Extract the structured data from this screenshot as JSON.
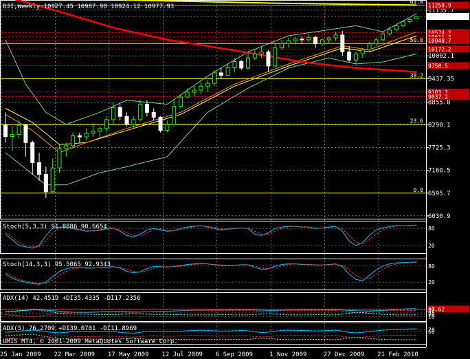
{
  "chart_data": {
    "type": "candlestick",
    "title": "DJI,Weekly  10927.45 10987.98 10924.12 10977.93",
    "symbol": "DJI",
    "timeframe": "Weekly",
    "ohlc_header": {
      "open": 10927.45,
      "high": 10987.98,
      "low": 10924.12,
      "close": 10977.93
    },
    "copyright": "UMIS MT4, © 2001-2009 MetaQuotes Software Corp.",
    "colors": {
      "background": "#000000",
      "candle_up": "#00ff00",
      "candle_down": "#ffffff",
      "grid": "#ffffff",
      "fib": "#ffff00",
      "red_line": "#ff0000",
      "sma_long": "#ff0000",
      "sma_long_yellow": "#ffff00",
      "bollinger": "#6fd3a6",
      "ma_orange": "#ff8c00",
      "ma_yellow": "#ffff66"
    },
    "x_tick_labels": [
      "25 Jan 2009",
      "22 Mar 2009",
      "17 May 2009",
      "12 Jul 2009",
      "6 Sep 2009",
      "1 Nov 2009",
      "27 Dec 2009",
      "21 Feb 2010"
    ],
    "y_tick_labels": [
      11135.7,
      10977.9,
      10002.1,
      9437.35,
      8855.0,
      8290.1,
      7725.3,
      7160.5,
      6595.7,
      6030.9
    ],
    "y_tick_label_text": [
      "11135.7",
      "10977.9",
      "10002.1",
      "9437.35",
      "8855.0",
      "8290.1",
      "7725.3",
      "7160.5",
      "6595.7",
      "6030.9"
    ],
    "ylim": [
      5960,
      11320
    ],
    "fib_levels": [
      {
        "label": "61.8",
        "price": 11258
      },
      {
        "label": "50.0",
        "price": 10310
      },
      {
        "label": "38.2",
        "price": 9437
      },
      {
        "label": "23.6",
        "price": 8305
      },
      {
        "label": "0.0",
        "price": 6595
      }
    ],
    "price_markers": [
      {
        "text": "11258.9",
        "price": 11258
      },
      {
        "text": "10574.2",
        "price": 10580
      },
      {
        "text": "10611.3",
        "price": 10470
      },
      {
        "text": "10048.7",
        "price": 10380
      },
      {
        "text": "10172.2",
        "price": 10172
      },
      {
        "text": "9758.5",
        "price": 9758
      },
      {
        "text": "9103.3",
        "price": 9103
      },
      {
        "text": "9037.2",
        "price": 8990
      }
    ],
    "candles": [
      [
        8281,
        8600,
        7850,
        8000
      ],
      [
        8000,
        8250,
        7640,
        8050
      ],
      [
        8050,
        8400,
        7950,
        8280
      ],
      [
        8280,
        8320,
        7500,
        7850
      ],
      [
        7850,
        7900,
        7050,
        7350
      ],
      [
        7350,
        7600,
        6900,
        7060
      ],
      [
        7060,
        7250,
        6470,
        6630
      ],
      [
        6630,
        7450,
        6600,
        7220
      ],
      [
        7220,
        7800,
        7100,
        7700
      ],
      [
        7700,
        7850,
        7500,
        7770
      ],
      [
        7770,
        8100,
        7700,
        8020
      ],
      [
        8020,
        8100,
        7850,
        7990
      ],
      [
        7990,
        8200,
        7900,
        8080
      ],
      [
        8080,
        8320,
        8000,
        8130
      ],
      [
        8130,
        8250,
        7950,
        8200
      ],
      [
        8200,
        8500,
        8100,
        8420
      ],
      [
        8420,
        8850,
        8300,
        8720
      ],
      [
        8720,
        8800,
        8400,
        8500
      ],
      [
        8500,
        8600,
        8250,
        8300
      ],
      [
        8300,
        8500,
        8200,
        8420
      ],
      [
        8420,
        8900,
        8380,
        8800
      ],
      [
        8800,
        8900,
        8500,
        8600
      ],
      [
        8600,
        8700,
        8400,
        8480
      ],
      [
        8480,
        8500,
        8100,
        8150
      ],
      [
        8150,
        8400,
        8100,
        8300
      ],
      [
        8300,
        8900,
        8250,
        8750
      ],
      [
        8750,
        9050,
        8700,
        8980
      ],
      [
        8980,
        9200,
        8950,
        9100
      ],
      [
        9100,
        9250,
        9000,
        9150
      ],
      [
        9150,
        9350,
        9050,
        9250
      ],
      [
        9250,
        9400,
        9100,
        9320
      ],
      [
        9320,
        9650,
        9250,
        9580
      ],
      [
        9580,
        9700,
        9450,
        9520
      ],
      [
        9520,
        9800,
        9500,
        9710
      ],
      [
        9710,
        9950,
        9600,
        9860
      ],
      [
        9860,
        9900,
        9650,
        9700
      ],
      [
        9700,
        10100,
        9650,
        9950
      ],
      [
        9950,
        10150,
        9900,
        10050
      ],
      [
        10050,
        10250,
        9950,
        10100
      ],
      [
        10100,
        10150,
        9600,
        9750
      ],
      [
        9750,
        10300,
        9700,
        10200
      ],
      [
        10200,
        10400,
        10150,
        10310
      ],
      [
        10310,
        10450,
        10200,
        10380
      ],
      [
        10380,
        10480,
        10280,
        10420
      ],
      [
        10420,
        10500,
        10300,
        10400
      ],
      [
        10400,
        10550,
        10350,
        10460
      ],
      [
        10460,
        10500,
        10200,
        10300
      ],
      [
        10300,
        10450,
        10250,
        10400
      ],
      [
        10400,
        10480,
        10300,
        10450
      ],
      [
        10450,
        10600,
        10380,
        10520
      ],
      [
        10520,
        10620,
        10000,
        10100
      ],
      [
        10100,
        10250,
        9850,
        9900
      ],
      [
        9900,
        10100,
        9800,
        10050
      ],
      [
        10050,
        10200,
        9950,
        10150
      ],
      [
        10150,
        10350,
        10100,
        10300
      ],
      [
        10300,
        10450,
        10250,
        10400
      ],
      [
        10400,
        10600,
        10350,
        10550
      ],
      [
        10550,
        10720,
        10500,
        10650
      ],
      [
        10650,
        10800,
        10600,
        10750
      ],
      [
        10750,
        10880,
        10700,
        10850
      ],
      [
        10850,
        10950,
        10800,
        10900
      ],
      [
        10927,
        10988,
        10924,
        10978
      ]
    ],
    "sma_long": [
      [
        0,
        11470
      ],
      [
        8,
        11100
      ],
      [
        16,
        10700
      ],
      [
        24,
        10400
      ],
      [
        28,
        10300
      ],
      [
        36,
        10080
      ],
      [
        44,
        9850
      ],
      [
        52,
        9700
      ],
      [
        61,
        9600
      ]
    ],
    "sma_long_yellow": [
      [
        0,
        11520
      ],
      [
        20,
        11380
      ],
      [
        40,
        11310
      ],
      [
        61,
        11262
      ]
    ],
    "ma_fast": [
      [
        0,
        8550
      ],
      [
        4,
        8150
      ],
      [
        8,
        7600
      ],
      [
        12,
        7850
      ],
      [
        18,
        8200
      ],
      [
        26,
        8600
      ],
      [
        34,
        9300
      ],
      [
        42,
        9800
      ],
      [
        50,
        10250
      ],
      [
        54,
        10150
      ],
      [
        61,
        10600
      ]
    ],
    "ma_mid": [
      [
        0,
        8700
      ],
      [
        4,
        8350
      ],
      [
        8,
        7800
      ],
      [
        12,
        7850
      ],
      [
        18,
        8150
      ],
      [
        26,
        8550
      ],
      [
        34,
        9250
      ],
      [
        42,
        9750
      ],
      [
        50,
        10200
      ],
      [
        54,
        10100
      ],
      [
        61,
        10500
      ]
    ],
    "bb_upper": [
      [
        0,
        10400
      ],
      [
        3,
        9300
      ],
      [
        6,
        8600
      ],
      [
        9,
        8300
      ],
      [
        14,
        8600
      ],
      [
        18,
        8900
      ],
      [
        24,
        8800
      ],
      [
        30,
        9500
      ],
      [
        36,
        10100
      ],
      [
        42,
        10500
      ],
      [
        48,
        10650
      ],
      [
        52,
        10750
      ],
      [
        56,
        10600
      ],
      [
        61,
        11050
      ]
    ],
    "bb_lower": [
      [
        0,
        7600
      ],
      [
        3,
        7200
      ],
      [
        6,
        6800
      ],
      [
        9,
        6800
      ],
      [
        14,
        7100
      ],
      [
        18,
        7250
      ],
      [
        24,
        7500
      ],
      [
        30,
        8600
      ],
      [
        36,
        9200
      ],
      [
        42,
        9700
      ],
      [
        48,
        9950
      ],
      [
        52,
        9800
      ],
      [
        56,
        9850
      ],
      [
        61,
        10050
      ]
    ],
    "indicators": [
      {
        "title": "Stoch(5,3,3) 91.8886 90.6654",
        "levels": [
          "80",
          "20"
        ],
        "main": [
          60,
          40,
          20,
          15,
          10,
          20,
          55,
          80,
          85,
          85,
          80,
          75,
          70,
          72,
          75,
          80,
          82,
          70,
          55,
          50,
          60,
          75,
          80,
          75,
          70,
          72,
          80,
          85,
          88,
          90,
          85,
          80,
          75,
          78,
          80,
          82,
          80,
          60,
          55,
          65,
          80,
          85,
          88,
          87,
          85,
          85,
          80,
          82,
          85,
          87,
          70,
          35,
          20,
          30,
          55,
          75,
          82,
          87,
          90,
          90,
          91,
          92
        ],
        "signal": [
          65,
          50,
          30,
          20,
          15,
          15,
          35,
          65,
          80,
          85,
          82,
          78,
          72,
          70,
          73,
          77,
          80,
          75,
          65,
          55,
          55,
          65,
          75,
          78,
          74,
          72,
          76,
          82,
          86,
          89,
          87,
          83,
          78,
          77,
          79,
          81,
          81,
          70,
          60,
          60,
          70,
          80,
          86,
          87,
          86,
          85,
          82,
          81,
          83,
          86,
          78,
          55,
          32,
          25,
          40,
          60,
          75,
          83,
          88,
          90,
          90,
          91
        ]
      },
      {
        "title": "Stoch(14,3,3) 95.5065 92.9343",
        "levels": [
          "80",
          "20"
        ],
        "main": [
          50,
          35,
          25,
          20,
          15,
          12,
          20,
          40,
          60,
          70,
          75,
          75,
          72,
          72,
          74,
          76,
          78,
          72,
          60,
          55,
          58,
          70,
          78,
          78,
          76,
          78,
          82,
          86,
          88,
          90,
          88,
          85,
          82,
          82,
          83,
          85,
          85,
          75,
          68,
          70,
          80,
          86,
          88,
          88,
          86,
          86,
          84,
          84,
          86,
          88,
          78,
          50,
          30,
          25,
          45,
          65,
          80,
          88,
          92,
          93,
          94,
          95
        ],
        "signal": [
          55,
          42,
          30,
          24,
          18,
          14,
          16,
          28,
          45,
          60,
          70,
          74,
          74,
          73,
          73,
          75,
          77,
          75,
          68,
          60,
          57,
          62,
          72,
          77,
          77,
          77,
          79,
          83,
          86,
          88,
          88,
          86,
          84,
          83,
          83,
          84,
          85,
          80,
          73,
          70,
          74,
          81,
          86,
          88,
          87,
          86,
          85,
          84,
          85,
          87,
          82,
          65,
          45,
          30,
          33,
          50,
          68,
          80,
          88,
          91,
          92,
          93
        ]
      },
      {
        "title": "ADX(14) 42.4519 +DI35.4335 -DI17.2356",
        "levels": [
          "40.62",
          "37",
          "25",
          "20",
          "10"
        ],
        "adx": [
          30,
          31,
          33,
          35,
          37,
          38,
          36,
          34,
          32,
          30,
          28,
          27,
          27,
          28,
          29,
          30,
          31,
          31,
          30,
          29,
          29,
          30,
          31,
          32,
          32,
          33,
          34,
          35,
          36,
          36,
          37,
          37,
          37,
          37,
          38,
          38,
          38,
          37,
          36,
          35,
          35,
          36,
          37,
          37,
          38,
          38,
          38,
          38,
          38,
          39,
          37,
          35,
          34,
          33,
          33,
          34,
          35,
          37,
          39,
          41,
          42,
          42
        ],
        "plus_di": [
          18,
          16,
          14,
          12,
          10,
          12,
          16,
          20,
          24,
          26,
          27,
          28,
          28,
          29,
          30,
          31,
          31,
          30,
          28,
          27,
          28,
          30,
          31,
          31,
          31,
          32,
          33,
          34,
          35,
          35,
          35,
          35,
          34,
          34,
          35,
          35,
          35,
          33,
          31,
          31,
          32,
          34,
          35,
          35,
          35,
          35,
          34,
          34,
          35,
          35,
          32,
          28,
          25,
          26,
          29,
          31,
          33,
          34,
          35,
          35,
          35,
          35
        ],
        "minus_di": [
          30,
          32,
          34,
          36,
          38,
          36,
          32,
          28,
          24,
          22,
          21,
          20,
          20,
          19,
          18,
          18,
          18,
          19,
          21,
          22,
          21,
          20,
          19,
          19,
          19,
          18,
          18,
          17,
          17,
          17,
          17,
          17,
          18,
          18,
          17,
          17,
          17,
          19,
          21,
          21,
          20,
          18,
          17,
          17,
          17,
          17,
          18,
          18,
          17,
          17,
          20,
          24,
          27,
          26,
          23,
          21,
          19,
          18,
          17,
          17,
          17,
          17
        ]
      },
      {
        "title": "ADX(5) 76.2709 +DI39.0701 -DI11.8969",
        "levels": [
          "70",
          "60"
        ],
        "adx": [
          55,
          58,
          62,
          65,
          68,
          65,
          58,
          55,
          52,
          55,
          60,
          62,
          60,
          58,
          60,
          62,
          60,
          55,
          52,
          50,
          55,
          60,
          62,
          60,
          58,
          60,
          62,
          64,
          66,
          68,
          66,
          64,
          62,
          63,
          64,
          66,
          64,
          58,
          54,
          56,
          62,
          66,
          68,
          67,
          66,
          65,
          63,
          64,
          66,
          68,
          62,
          55,
          52,
          55,
          60,
          64,
          68,
          70,
          72,
          74,
          75,
          76
        ],
        "plus_di": [
          20,
          18,
          16,
          15,
          14,
          20,
          28,
          35,
          36,
          34,
          32,
          30,
          30,
          31,
          32,
          34,
          33,
          30,
          28,
          27,
          30,
          34,
          35,
          34,
          32,
          33,
          35,
          36,
          37,
          37,
          36,
          35,
          34,
          34,
          35,
          36,
          35,
          30,
          28,
          30,
          34,
          36,
          37,
          37,
          36,
          36,
          35,
          35,
          36,
          37,
          32,
          26,
          24,
          27,
          31,
          34,
          36,
          37,
          38,
          38,
          39,
          39
        ],
        "minus_di": [
          35,
          38,
          40,
          42,
          44,
          38,
          30,
          22,
          18,
          17,
          16,
          16,
          16,
          15,
          15,
          14,
          15,
          17,
          19,
          20,
          18,
          15,
          14,
          15,
          16,
          15,
          14,
          13,
          13,
          12,
          13,
          14,
          15,
          15,
          14,
          13,
          14,
          18,
          21,
          19,
          16,
          14,
          13,
          13,
          13,
          13,
          14,
          14,
          13,
          12,
          16,
          22,
          25,
          23,
          19,
          16,
          14,
          13,
          12,
          12,
          12,
          12
        ]
      }
    ]
  }
}
